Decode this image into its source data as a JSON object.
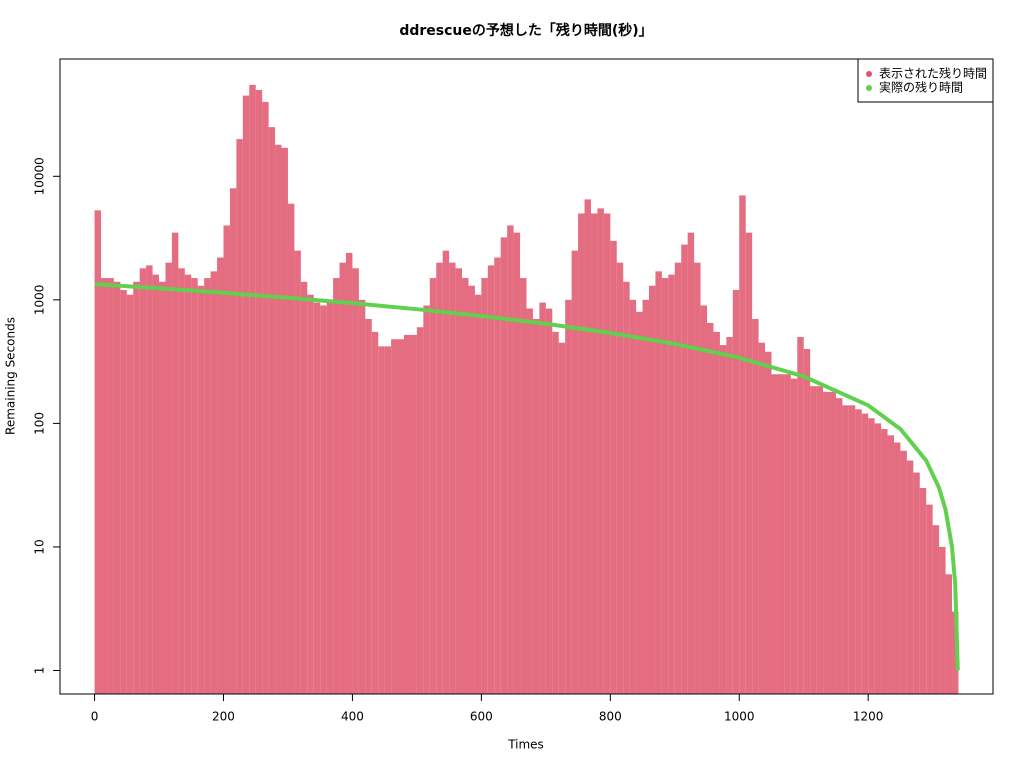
{
  "chart_data": {
    "type": "bar-line",
    "title": "ddrescueの予想した「残り時間(秒)」",
    "x_label": "Times",
    "y_label": "Remaining Seconds",
    "xlim": [
      -53.6,
      1393.6
    ],
    "ylim": [
      0.645,
      89000
    ],
    "log_y": true,
    "xticks": [
      0,
      200,
      400,
      600,
      800,
      1000,
      1200
    ],
    "yticks": [
      1,
      10,
      100,
      1000,
      10000
    ],
    "legend": "top-right",
    "series": [
      {
        "name": "表示された残り時間",
        "color": "#DF536B",
        "type": "bar",
        "x": [
          0,
          10,
          20,
          30,
          40,
          50,
          60,
          70,
          80,
          90,
          100,
          110,
          120,
          130,
          140,
          150,
          160,
          170,
          180,
          190,
          200,
          210,
          220,
          230,
          240,
          250,
          260,
          270,
          280,
          290,
          300,
          310,
          320,
          330,
          340,
          350,
          360,
          370,
          380,
          390,
          400,
          410,
          420,
          430,
          440,
          450,
          460,
          470,
          480,
          490,
          500,
          510,
          520,
          530,
          540,
          550,
          560,
          570,
          580,
          590,
          600,
          610,
          620,
          630,
          640,
          650,
          660,
          670,
          680,
          690,
          700,
          710,
          720,
          730,
          740,
          750,
          760,
          770,
          780,
          790,
          800,
          810,
          820,
          830,
          840,
          850,
          860,
          870,
          880,
          890,
          900,
          910,
          920,
          930,
          940,
          950,
          960,
          970,
          980,
          990,
          1000,
          1010,
          1020,
          1030,
          1040,
          1050,
          1060,
          1070,
          1080,
          1090,
          1100,
          1110,
          1120,
          1130,
          1140,
          1150,
          1160,
          1170,
          1180,
          1190,
          1200,
          1210,
          1220,
          1230,
          1240,
          1250,
          1260,
          1270,
          1280,
          1290,
          1300,
          1310,
          1320,
          1330
        ],
        "values": [
          5300,
          1500,
          1500,
          1400,
          1200,
          1100,
          1400,
          1800,
          1900,
          1600,
          1400,
          2000,
          3500,
          1800,
          1600,
          1500,
          1300,
          1500,
          1700,
          2200,
          4000,
          8000,
          20000,
          45000,
          55000,
          50000,
          40000,
          25000,
          18000,
          17000,
          6000,
          2500,
          1400,
          1100,
          950,
          900,
          1000,
          1500,
          2000,
          2400,
          1800,
          1000,
          700,
          550,
          420,
          420,
          480,
          480,
          520,
          520,
          600,
          900,
          1500,
          2000,
          2500,
          2000,
          1800,
          1500,
          1300,
          1100,
          1500,
          1900,
          2200,
          3200,
          4000,
          3500,
          1500,
          850,
          700,
          950,
          850,
          550,
          450,
          1000,
          2500,
          5000,
          6500,
          5000,
          5500,
          5000,
          3000,
          2000,
          1400,
          1000,
          800,
          1000,
          1300,
          1700,
          1500,
          1600,
          2000,
          2800,
          3500,
          2000,
          900,
          650,
          550,
          430,
          500,
          1200,
          7000,
          3500,
          700,
          450,
          380,
          250,
          250,
          250,
          230,
          500,
          400,
          200,
          200,
          180,
          180,
          160,
          140,
          140,
          130,
          120,
          110,
          100,
          90,
          80,
          70,
          60,
          50,
          40,
          30,
          22,
          15,
          10,
          6,
          3
        ]
      },
      {
        "name": "実際の残り時間",
        "color": "#61D04F",
        "type": "line",
        "x": [
          0,
          100,
          200,
          300,
          400,
          500,
          600,
          700,
          800,
          900,
          1000,
          1100,
          1200,
          1250,
          1290,
          1310,
          1320,
          1330,
          1335,
          1339
        ],
        "values": [
          1340,
          1240,
          1140,
          1040,
          940,
          840,
          740,
          640,
          540,
          440,
          340,
          240,
          140,
          90,
          50,
          30,
          20,
          10,
          5,
          1
        ]
      }
    ]
  }
}
